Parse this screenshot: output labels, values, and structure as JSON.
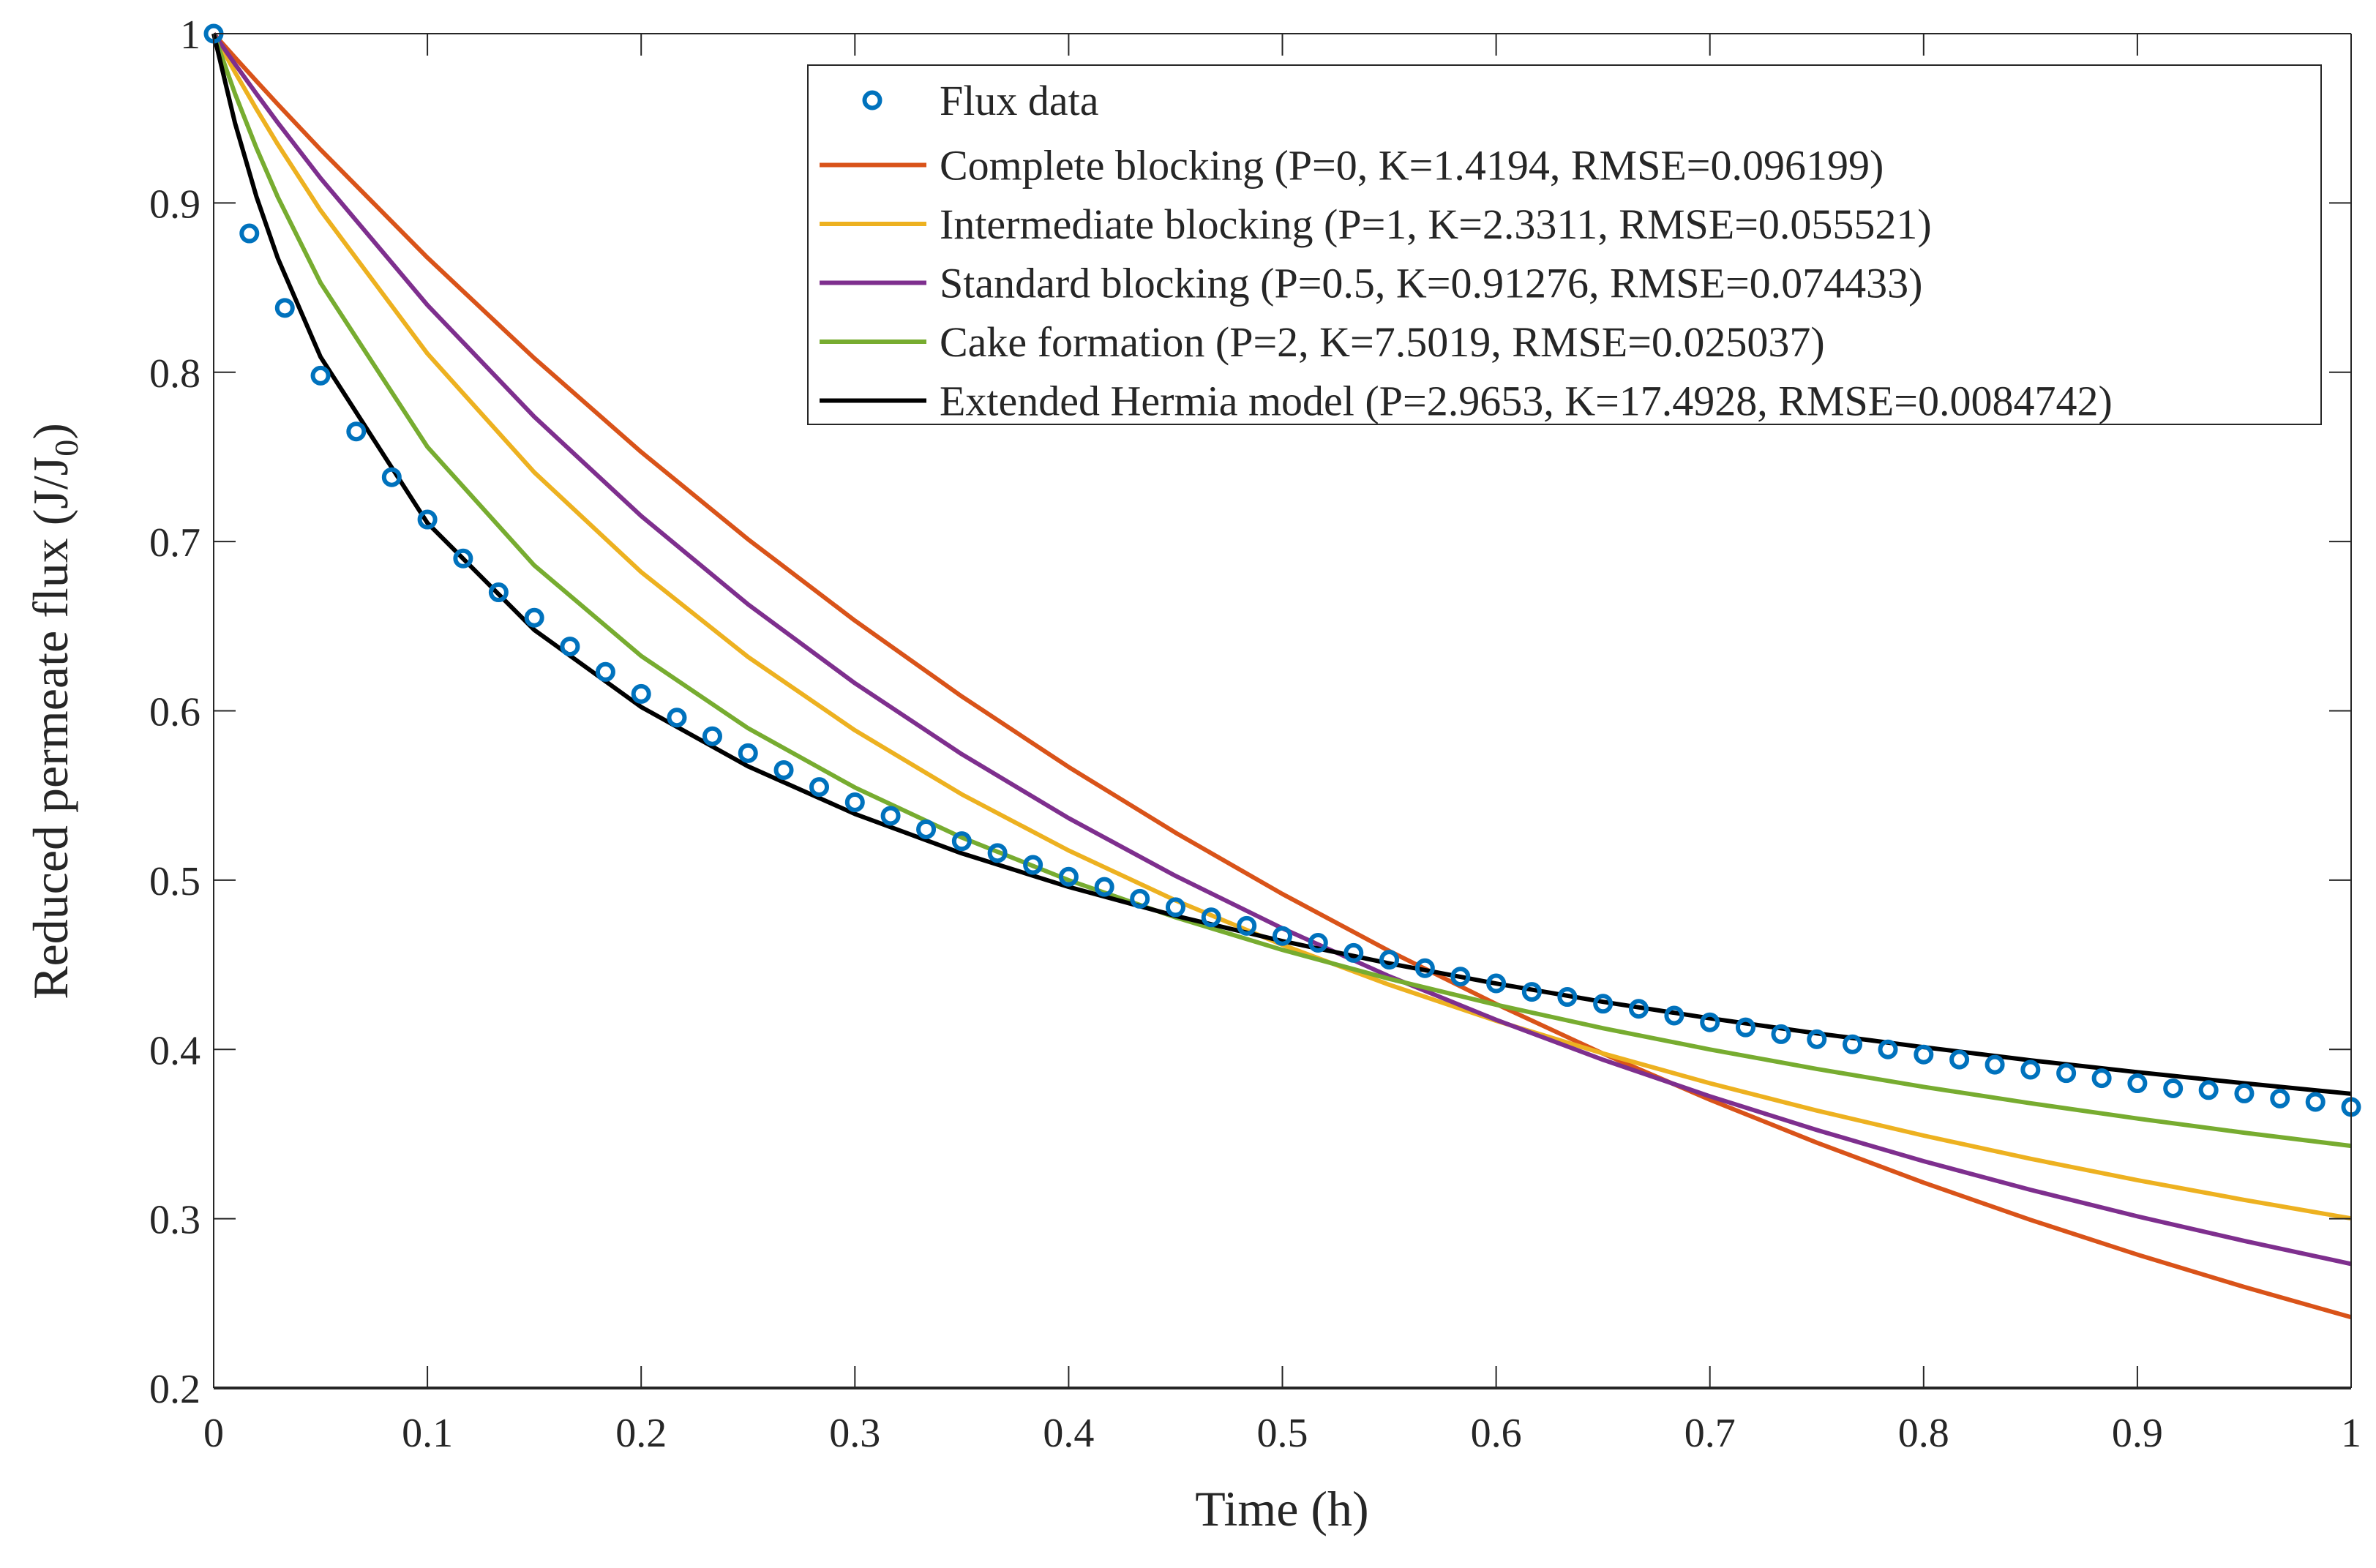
{
  "chart_data": {
    "type": "line",
    "title": "",
    "xlabel": "Time (h)",
    "ylabel": "Reduced permeate flux (J/J",
    "ylabel_subscript": "0",
    "ylabel_suffix": ")",
    "xlim": [
      0,
      1
    ],
    "ylim": [
      0.2,
      1
    ],
    "xticks": [
      0,
      0.1,
      0.2,
      0.3,
      0.4,
      0.5,
      0.6,
      0.7,
      0.8,
      0.9,
      1
    ],
    "xtick_labels": [
      "0",
      "0.1",
      "0.2",
      "0.3",
      "0.4",
      "0.5",
      "0.6",
      "0.7",
      "0.8",
      "0.9",
      "1"
    ],
    "yticks": [
      0.2,
      0.3,
      0.4,
      0.5,
      0.6,
      0.7,
      0.8,
      0.9,
      1
    ],
    "ytick_labels": [
      "0.2",
      "0.3",
      "0.4",
      "0.5",
      "0.6",
      "0.7",
      "0.8",
      "0.9",
      "1"
    ],
    "grid": false,
    "legend_position": "top-right",
    "scatter": {
      "name": "Flux data",
      "color": "#0072BD",
      "marker": "circle-open",
      "x": [
        0,
        0.0167,
        0.0333,
        0.05,
        0.0667,
        0.0833,
        0.1,
        0.1167,
        0.1333,
        0.15,
        0.1667,
        0.1833,
        0.2,
        0.2167,
        0.2333,
        0.25,
        0.2667,
        0.2833,
        0.3,
        0.3167,
        0.3333,
        0.35,
        0.3667,
        0.3833,
        0.4,
        0.4167,
        0.4333,
        0.45,
        0.4667,
        0.4833,
        0.5,
        0.5167,
        0.5333,
        0.55,
        0.5667,
        0.5833,
        0.6,
        0.6167,
        0.6333,
        0.65,
        0.6667,
        0.6833,
        0.7,
        0.7167,
        0.7333,
        0.75,
        0.7667,
        0.7833,
        0.8,
        0.8167,
        0.8333,
        0.85,
        0.8667,
        0.8833,
        0.9,
        0.9167,
        0.9333,
        0.95,
        0.9667,
        0.9833,
        1
      ],
      "y": [
        1,
        0.882,
        0.838,
        0.798,
        0.765,
        0.738,
        0.713,
        0.69,
        0.67,
        0.655,
        0.638,
        0.623,
        0.61,
        0.596,
        0.585,
        0.575,
        0.565,
        0.555,
        0.546,
        0.538,
        0.53,
        0.523,
        0.516,
        0.509,
        0.502,
        0.496,
        0.489,
        0.484,
        0.478,
        0.473,
        0.467,
        0.463,
        0.457,
        0.453,
        0.448,
        0.443,
        0.439,
        0.434,
        0.431,
        0.427,
        0.424,
        0.42,
        0.416,
        0.413,
        0.409,
        0.406,
        0.403,
        0.4,
        0.397,
        0.394,
        0.391,
        0.388,
        0.386,
        0.383,
        0.38,
        0.377,
        0.376,
        0.374,
        0.371,
        0.369,
        0.366
      ]
    },
    "x": [
      0,
      0.01,
      0.02,
      0.03,
      0.05,
      0.1,
      0.15,
      0.2,
      0.25,
      0.3,
      0.35,
      0.4,
      0.45,
      0.5,
      0.55,
      0.6,
      0.65,
      0.7,
      0.75,
      0.8,
      0.85,
      0.9,
      0.95,
      1
    ],
    "series": [
      {
        "name": "Complete blocking (P=0, K=1.4194, RMSE=0.096199)",
        "color": "#D95319",
        "values": [
          1,
          0.9859,
          0.972,
          0.9583,
          0.9315,
          0.8677,
          0.8083,
          0.7529,
          0.7013,
          0.6533,
          0.6085,
          0.5668,
          0.528,
          0.4918,
          0.4581,
          0.4268,
          0.3975,
          0.3703,
          0.3449,
          0.3213,
          0.2993,
          0.2788,
          0.2597,
          0.2418
        ]
      },
      {
        "name": "Intermediate blocking (P=1, K=2.3311, RMSE=0.055521)",
        "color": "#EDB120",
        "values": [
          1,
          0.9772,
          0.9555,
          0.9346,
          0.8956,
          0.811,
          0.7409,
          0.682,
          0.6318,
          0.5885,
          0.5507,
          0.5175,
          0.488,
          0.4618,
          0.4382,
          0.4169,
          0.3976,
          0.38,
          0.3639,
          0.3491,
          0.3354,
          0.3228,
          0.3111,
          0.3002
        ]
      },
      {
        "name": "Standard blocking (P=0.5, K=0.91276, RMSE=0.074433)",
        "color": "#7E2F8E",
        "values": [
          1,
          0.982,
          0.9645,
          0.9474,
          0.9146,
          0.8397,
          0.7737,
          0.7151,
          0.6629,
          0.6163,
          0.5744,
          0.5366,
          0.5025,
          0.4715,
          0.4432,
          0.4175,
          0.3939,
          0.3723,
          0.3524,
          0.334,
          0.3171,
          0.3014,
          0.2869,
          0.2733
        ]
      },
      {
        "name": "Cake formation (P=2, K=7.5019, RMSE=0.025037)",
        "color": "#77AC30",
        "values": [
          1,
          0.9645,
          0.9325,
          0.9035,
          0.8528,
          0.7559,
          0.6859,
          0.6324,
          0.5897,
          0.5547,
          0.5252,
          0.5,
          0.478,
          0.4588,
          0.4417,
          0.4264,
          0.4125,
          0.4,
          0.3885,
          0.3779,
          0.3682,
          0.3592,
          0.3508,
          0.343
        ]
      },
      {
        "name": "Extended Hermia model (P=2.9653, K=17.4928, RMSE=0.0084742)",
        "color": "#000000",
        "values": [
          1,
          0.9471,
          0.9038,
          0.8674,
          0.809,
          0.711,
          0.6478,
          0.6023,
          0.5672,
          0.5391,
          0.5158,
          0.496,
          0.4789,
          0.464,
          0.4508,
          0.4389,
          0.4281,
          0.4184,
          0.4095,
          0.4013,
          0.3936,
          0.3866,
          0.38,
          0.3738
        ]
      }
    ]
  }
}
